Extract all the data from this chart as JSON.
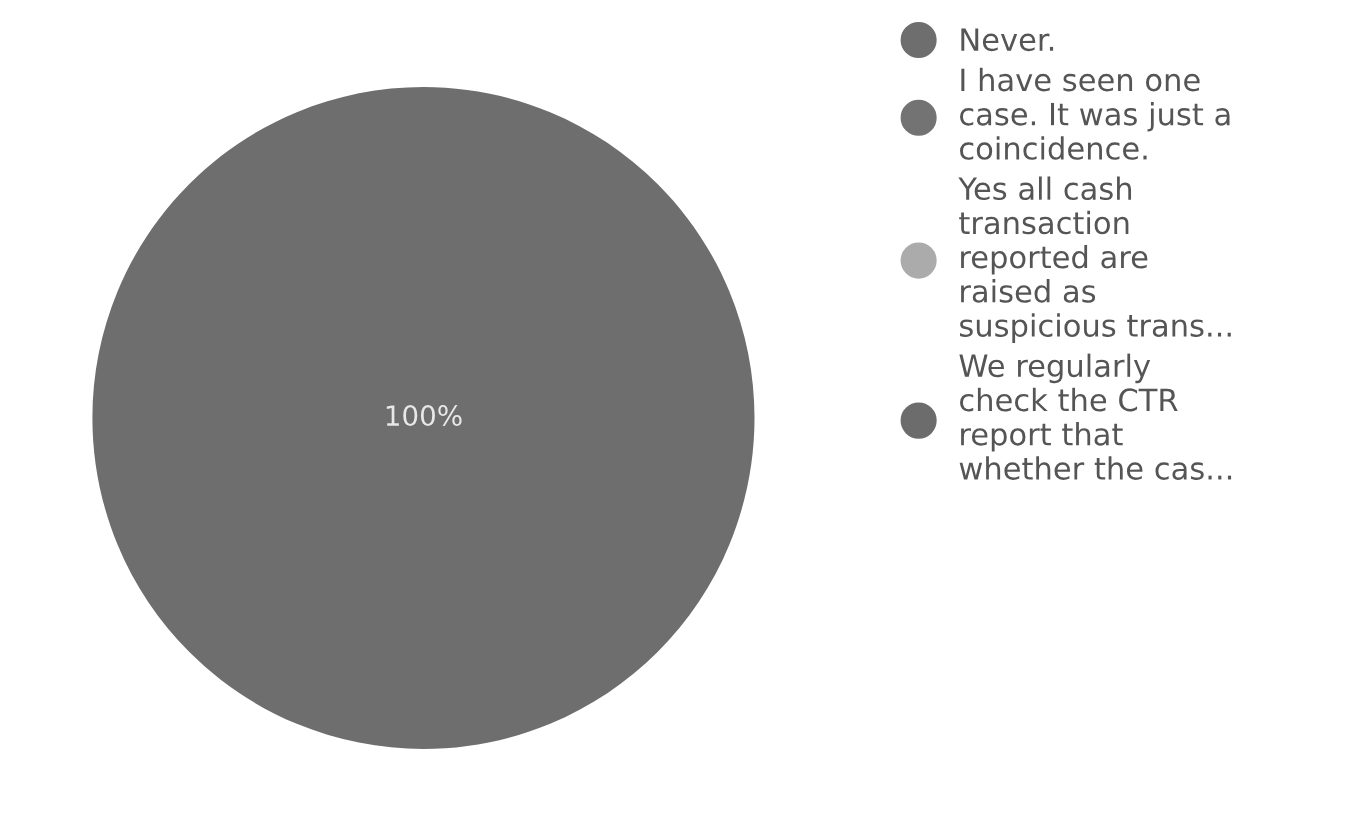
{
  "chart_data": {
    "type": "pie",
    "categories": [
      "Never.",
      "I have seen one\ncase. It was just a\ncoincidence.",
      "Yes all cash\ntransaction\nreported are\nraised as\nsuspicious trans...",
      "We regularly\ncheck the CTR\nreport that\nwhether the cas..."
    ],
    "values": [
      100,
      0,
      0,
      0
    ],
    "colors": [
      "#6e6e6e",
      "#737373",
      "#ababab",
      "#6c6c6c"
    ],
    "value_labels": [
      "100%",
      null,
      null,
      null
    ],
    "legend": "right"
  }
}
